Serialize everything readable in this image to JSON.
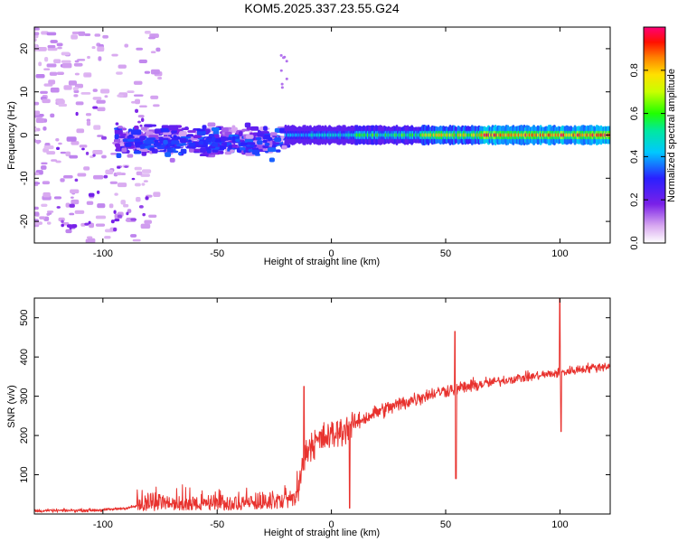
{
  "figure_title": "KOM5.2025.337.23.55.G24",
  "chart_data": [
    {
      "type": "heatmap",
      "title": "KOM5.2025.337.23.55.G24",
      "xlabel": "Height of straight line (km)",
      "ylabel": "Frequency (Hz)",
      "xlim": [
        -130,
        122
      ],
      "ylim": [
        -25,
        25
      ],
      "xticks": [
        -100,
        -50,
        0,
        50,
        100
      ],
      "yticks": [
        -20,
        -10,
        0,
        10,
        20
      ],
      "xtick_labels": [
        "-100",
        "-50",
        "0",
        "50",
        "100"
      ],
      "ytick_labels": [
        "-20",
        "-10",
        "0",
        "10",
        "20"
      ],
      "colorbar": {
        "label": "Normalized spectral amplitude",
        "range": [
          0,
          1
        ],
        "ticks": [
          0.0,
          0.2,
          0.4,
          0.6,
          0.8
        ],
        "tick_labels": [
          "0.0",
          "0.2",
          "0.4",
          "0.6",
          "0.8"
        ],
        "colormap": "rainbow (white-purple-blue-cyan-green-yellow-orange-red-magenta)"
      },
      "description_of_content": {
        "noise_region_km": [
          -130,
          -85
        ],
        "scattered_cluster_km": [
          -95,
          -20
        ],
        "scattered_cluster_freq_hz": [
          -8,
          4
        ],
        "carrier_line_start_km": -20,
        "carrier_line_freq_hz": 0,
        "carrier_peak_amplitude_km": [
          70,
          100
        ]
      }
    },
    {
      "type": "line",
      "xlabel": "Height of straight line (km)",
      "ylabel": "SNR (v/v)",
      "xlim": [
        -130,
        122
      ],
      "ylim": [
        0,
        550
      ],
      "xticks": [
        -100,
        -50,
        0,
        50,
        100
      ],
      "yticks": [
        100,
        200,
        300,
        400,
        500
      ],
      "xtick_labels": [
        "-100",
        "-50",
        "0",
        "50",
        "100"
      ],
      "ytick_labels": [
        "100",
        "200",
        "300",
        "400",
        "500"
      ],
      "series": [
        {
          "name": "SNR",
          "color": "#e8322e",
          "trend_points": {
            "x": [
              -130,
              -100,
              -90,
              -80,
              -60,
              -40,
              -30,
              -20,
              -15,
              -10,
              0,
              10,
              20,
              30,
              40,
              50,
              60,
              70,
              80,
              90,
              100,
              110,
              122
            ],
            "y": [
              8,
              10,
              15,
              25,
              30,
              33,
              40,
              50,
              70,
              175,
              200,
              230,
              260,
              280,
              300,
              315,
              325,
              335,
              345,
              352,
              360,
              370,
              378
            ]
          },
          "spikes": [
            {
              "x": -12,
              "y": 325
            },
            {
              "x": 8,
              "y": 15
            },
            {
              "x": 54,
              "y": 465
            },
            {
              "x": 54.5,
              "y": 90
            },
            {
              "x": 100,
              "y": 550
            },
            {
              "x": 100.5,
              "y": 210
            }
          ]
        }
      ]
    }
  ]
}
